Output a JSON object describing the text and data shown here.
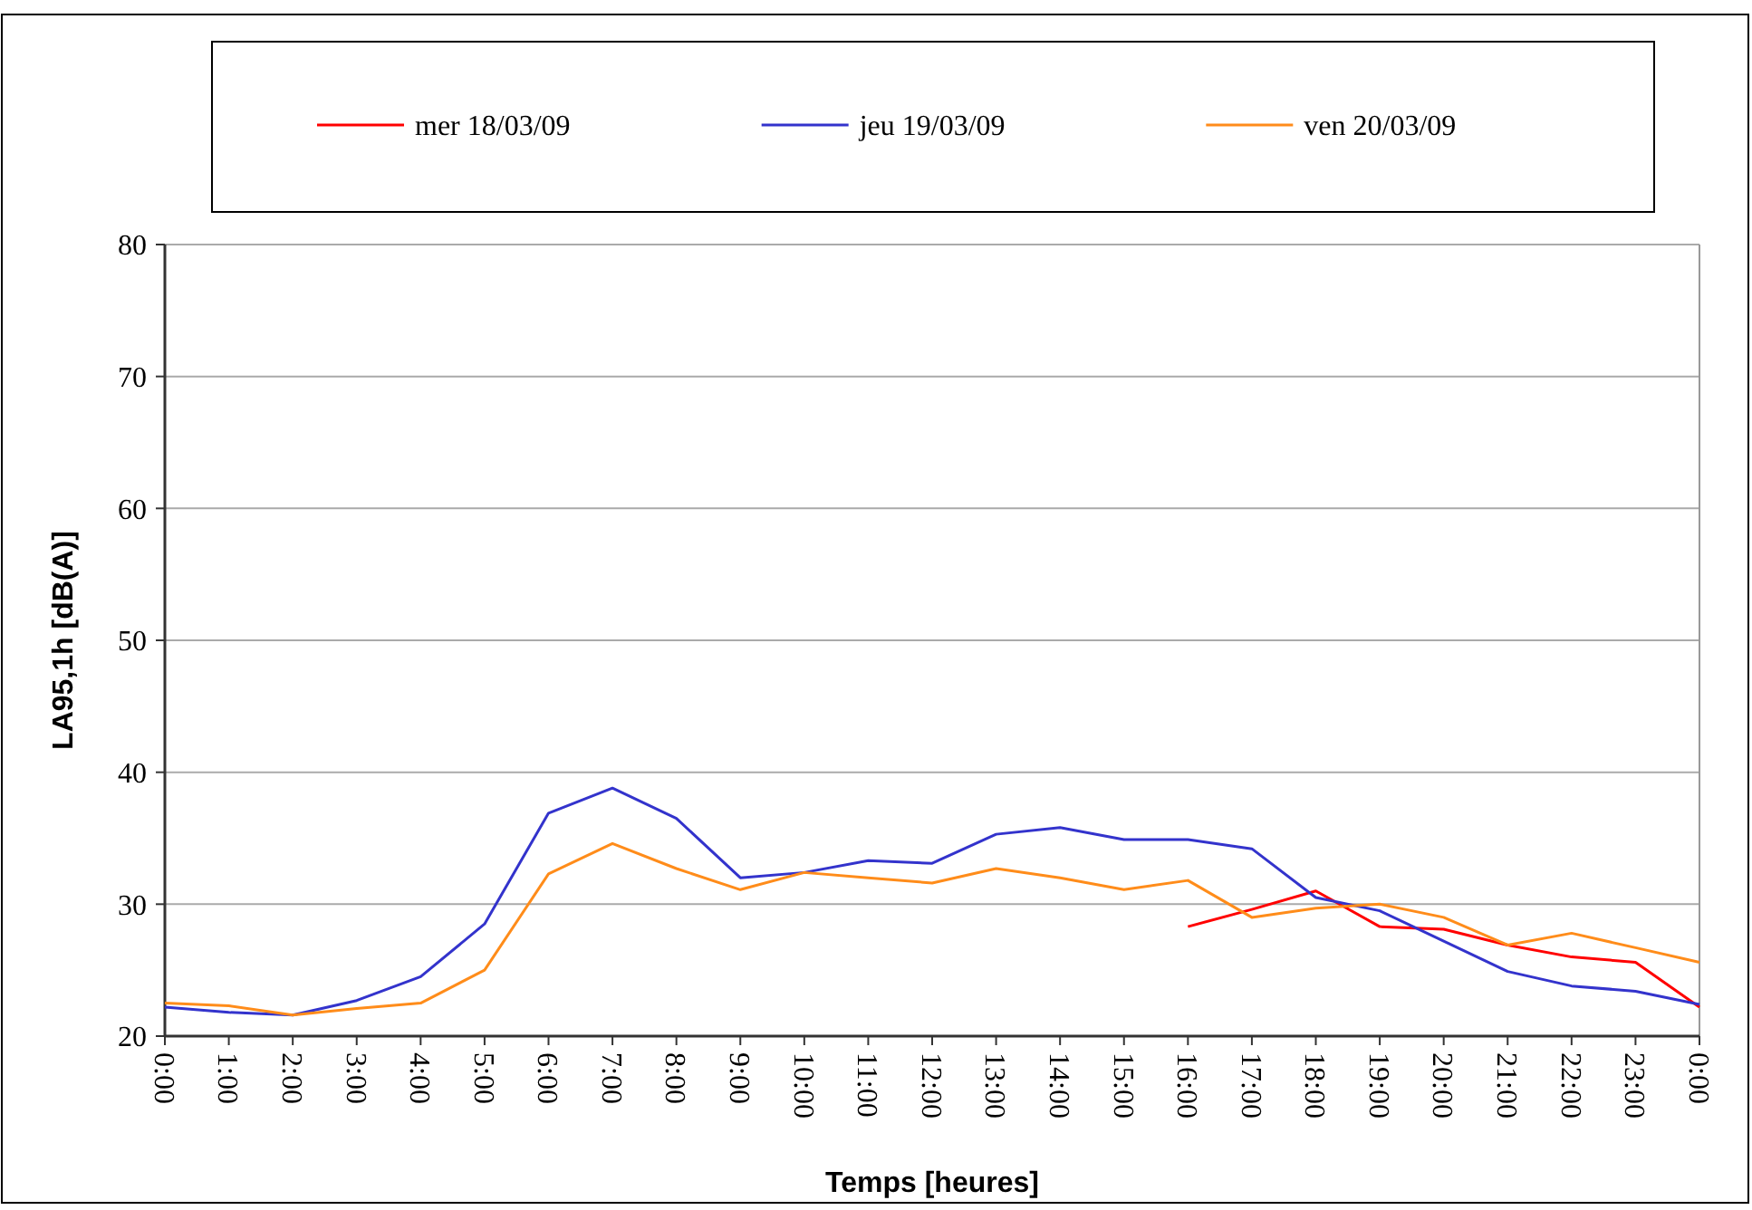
{
  "chart_data": {
    "type": "line",
    "xlabel": "Temps [heures]",
    "ylabel": "LA95,1h [dB(A)]",
    "x": [
      0,
      1,
      2,
      3,
      4,
      5,
      6,
      7,
      8,
      9,
      10,
      11,
      12,
      13,
      14,
      15,
      16,
      17,
      18,
      19,
      20,
      21,
      22,
      23,
      24
    ],
    "series": [
      {
        "name": "mer 18/03/09",
        "color": "#ff0000",
        "x": [
          16,
          17,
          18,
          19,
          20,
          21,
          22,
          23,
          24
        ],
        "values": [
          28.3,
          29.6,
          31.0,
          28.3,
          28.1,
          26.9,
          26.0,
          25.6,
          22.2
        ]
      },
      {
        "name": "jeu 19/03/09",
        "color": "#3333cc",
        "values": [
          22.2,
          21.8,
          21.6,
          22.7,
          24.5,
          28.5,
          36.9,
          38.8,
          36.5,
          32.0,
          32.4,
          33.3,
          33.1,
          35.3,
          35.8,
          34.9,
          34.9,
          34.2,
          30.5,
          29.5,
          27.2,
          24.9,
          23.8,
          23.4,
          22.4
        ]
      },
      {
        "name": "ven 20/03/09",
        "color": "#ff8c1a",
        "values": [
          22.5,
          22.3,
          21.6,
          22.1,
          22.5,
          25.0,
          32.3,
          34.6,
          32.7,
          31.1,
          32.4,
          32.0,
          31.6,
          32.7,
          32.0,
          31.1,
          31.8,
          29.0,
          29.7,
          30.0,
          29.0,
          26.9,
          27.8,
          26.7,
          25.6
        ]
      }
    ],
    "xlim": [
      0,
      24
    ],
    "xticks": [
      {
        "value": 0,
        "label": "0:00"
      },
      {
        "value": 1,
        "label": "1:00"
      },
      {
        "value": 2,
        "label": "2:00"
      },
      {
        "value": 3,
        "label": "3:00"
      },
      {
        "value": 4,
        "label": "4:00"
      },
      {
        "value": 5,
        "label": "5:00"
      },
      {
        "value": 6,
        "label": "6:00"
      },
      {
        "value": 7,
        "label": "7:00"
      },
      {
        "value": 8,
        "label": "8:00"
      },
      {
        "value": 9,
        "label": "9:00"
      },
      {
        "value": 10,
        "label": "10:00"
      },
      {
        "value": 11,
        "label": "11:00"
      },
      {
        "value": 12,
        "label": "12:00"
      },
      {
        "value": 13,
        "label": "13:00"
      },
      {
        "value": 14,
        "label": "14:00"
      },
      {
        "value": 15,
        "label": "15:00"
      },
      {
        "value": 16,
        "label": "16:00"
      },
      {
        "value": 17,
        "label": "17:00"
      },
      {
        "value": 18,
        "label": "18:00"
      },
      {
        "value": 19,
        "label": "19:00"
      },
      {
        "value": 20,
        "label": "20:00"
      },
      {
        "value": 21,
        "label": "21:00"
      },
      {
        "value": 22,
        "label": "22:00"
      },
      {
        "value": 23,
        "label": "23:00"
      },
      {
        "value": 24,
        "label": "0:00"
      }
    ],
    "ylim": [
      20,
      80
    ],
    "yticks": [
      20,
      30,
      40,
      50,
      60,
      70,
      80
    ],
    "grid": "y",
    "legend": "top",
    "marker": "none",
    "line_style": "solid"
  }
}
